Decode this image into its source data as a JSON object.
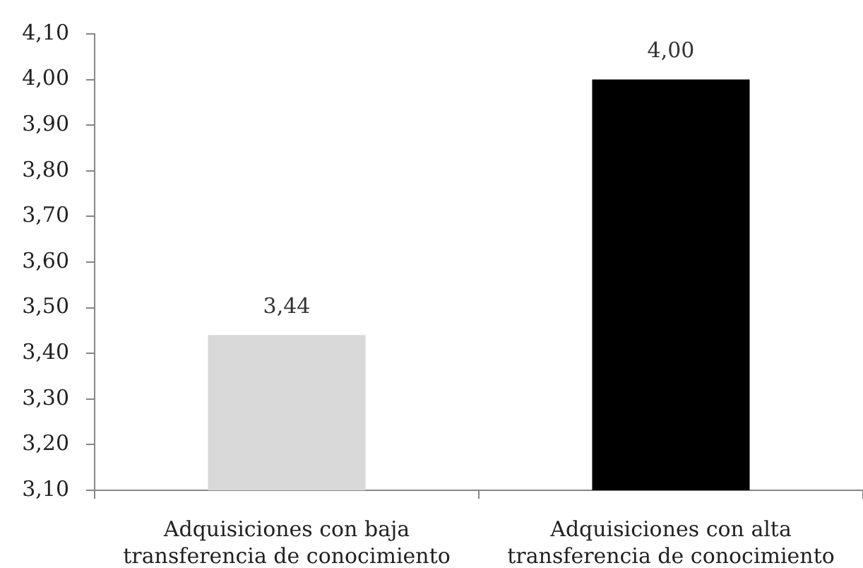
{
  "chart_data": {
    "type": "bar",
    "categories": [
      "Adquisiciones con baja\ntransferencia de conocimiento",
      "Adquisiciones con alta\ntransferencia de conocimiento"
    ],
    "values": [
      3.44,
      4.0
    ],
    "colors": [
      "#d9d9d9",
      "#000000"
    ],
    "value_labels": [
      "3,44",
      "4,00"
    ],
    "ylim": [
      3.1,
      4.1
    ],
    "yticks": [
      {
        "value": 3.1,
        "label": "3,10"
      },
      {
        "value": 3.2,
        "label": "3,20"
      },
      {
        "value": 3.3,
        "label": "3,30"
      },
      {
        "value": 3.4,
        "label": "3,40"
      },
      {
        "value": 3.5,
        "label": "3,50"
      },
      {
        "value": 3.6,
        "label": "3,60"
      },
      {
        "value": 3.7,
        "label": "3,70"
      },
      {
        "value": 3.8,
        "label": "3,80"
      },
      {
        "value": 3.9,
        "label": "3,90"
      },
      {
        "value": 4.0,
        "label": "4,00"
      },
      {
        "value": 4.1,
        "label": "4,10"
      }
    ],
    "grid": false,
    "legend": false
  }
}
